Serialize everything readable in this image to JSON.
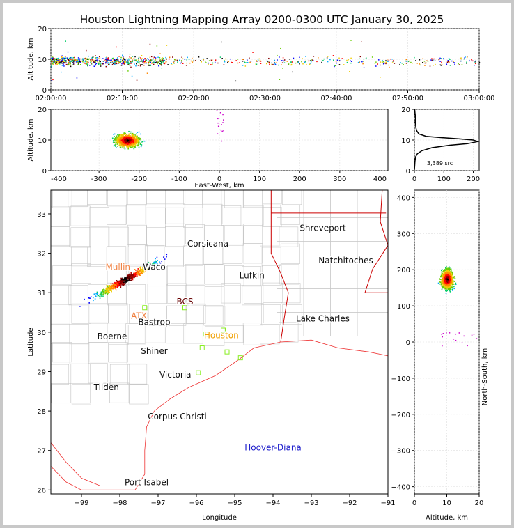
{
  "title": "Houston Lightning Mapping Array 0200-0300 UTC January 30, 2025",
  "colors": {
    "border": "#cc0000",
    "county": "#c8c8c8",
    "coast": "#ee3333",
    "station": "#88ee22",
    "frame": "#000000"
  },
  "chart_data": [
    {
      "id": "time-altitude",
      "type": "scatter",
      "xlabel": "",
      "ylabel": "Altitude, km",
      "xlim": [
        "02:00:00",
        "03:00:00"
      ],
      "x_ticks": [
        "02:00:00",
        "02:10:00",
        "02:20:00",
        "02:30:00",
        "02:40:00",
        "02:50:00",
        "03:00:00"
      ],
      "ylim": [
        0,
        20
      ],
      "y_ticks": [
        0,
        10,
        20
      ],
      "source_altitude_km": 9.5
    },
    {
      "id": "east-west-altitude",
      "type": "scatter",
      "xlabel": "East-West, km",
      "ylabel": "Altitude, km",
      "xlim": [
        -420,
        420
      ],
      "x_ticks": [
        -400,
        -300,
        -200,
        -100,
        0,
        100,
        200,
        300,
        400
      ],
      "ylim": [
        0,
        20
      ],
      "y_ticks": [
        0,
        10,
        20
      ],
      "cluster_center": [
        -230,
        10
      ]
    },
    {
      "id": "altitude-histogram",
      "type": "line",
      "xlim": [
        0,
        220
      ],
      "x_ticks": [
        0,
        100,
        200
      ],
      "ylim": [
        0,
        20
      ],
      "y_ticks": [
        0,
        10,
        20
      ],
      "annotation": "3,389 src",
      "profile": [
        [
          0,
          0.3
        ],
        [
          1,
          1.5
        ],
        [
          2,
          3
        ],
        [
          4,
          4.5
        ],
        [
          10,
          5.5
        ],
        [
          25,
          6.5
        ],
        [
          60,
          7.5
        ],
        [
          120,
          8.3
        ],
        [
          180,
          8.8
        ],
        [
          215,
          9.5
        ],
        [
          200,
          10.0
        ],
        [
          150,
          10.4
        ],
        [
          90,
          10.8
        ],
        [
          40,
          11.2
        ],
        [
          15,
          12
        ],
        [
          8,
          13
        ],
        [
          5,
          14
        ],
        [
          4,
          15
        ],
        [
          3,
          16
        ],
        [
          4,
          17
        ],
        [
          3,
          18
        ],
        [
          2,
          19
        ],
        [
          1,
          20
        ]
      ]
    },
    {
      "id": "plan-view",
      "type": "scatter",
      "xlabel": "Longitude",
      "ylabel": "Latitude",
      "xlim": [
        -99.8,
        -91
      ],
      "x_ticks": [
        -99,
        -98,
        -97,
        -96,
        -95,
        -94,
        -93,
        -92,
        -91
      ],
      "ylim": [
        25.9,
        33.6
      ],
      "y_ticks": [
        26,
        27,
        28,
        29,
        30,
        31,
        32,
        33
      ],
      "cities": [
        {
          "name": "Shreveport",
          "lon": -92.7,
          "lat": 32.57,
          "color": "#111111"
        },
        {
          "name": "Corsicana",
          "lon": -95.7,
          "lat": 32.17,
          "color": "#111111"
        },
        {
          "name": "Natchitoches",
          "lon": -92.1,
          "lat": 31.75,
          "color": "#111111"
        },
        {
          "name": "Mullin",
          "lon": -98.05,
          "lat": 31.58,
          "color": "#f08040"
        },
        {
          "name": "Waco",
          "lon": -97.1,
          "lat": 31.58,
          "color": "#111111"
        },
        {
          "name": "Lufkin",
          "lon": -94.55,
          "lat": 31.37,
          "color": "#111111"
        },
        {
          "name": "BCS",
          "lon": -96.3,
          "lat": 30.7,
          "color": "#660000"
        },
        {
          "name": "ATX",
          "lon": -97.5,
          "lat": 30.34,
          "color": "#f08040"
        },
        {
          "name": "Bastrop",
          "lon": -97.1,
          "lat": 30.18,
          "color": "#111111"
        },
        {
          "name": "Lake Charles",
          "lon": -92.7,
          "lat": 30.27,
          "color": "#111111"
        },
        {
          "name": "Houston",
          "lon": -95.35,
          "lat": 29.85,
          "color": "#f0a000"
        },
        {
          "name": "Boerne",
          "lon": -98.2,
          "lat": 29.82,
          "color": "#111111"
        },
        {
          "name": "Shiner",
          "lon": -97.1,
          "lat": 29.45,
          "color": "#111111"
        },
        {
          "name": "Victoria",
          "lon": -96.55,
          "lat": 28.85,
          "color": "#111111"
        },
        {
          "name": "Tilden",
          "lon": -98.35,
          "lat": 28.53,
          "color": "#111111"
        },
        {
          "name": "Corpus Christi",
          "lon": -96.5,
          "lat": 27.79,
          "color": "#111111"
        },
        {
          "name": "Hoover-Diana",
          "lon": -94.0,
          "lat": 27.0,
          "color": "#2020cc"
        },
        {
          "name": "Port Isabel",
          "lon": -97.3,
          "lat": 26.12,
          "color": "#111111"
        }
      ],
      "stations": [
        [
          -97.35,
          30.62
        ],
        [
          -96.3,
          30.62
        ],
        [
          -95.3,
          30.05
        ],
        [
          -95.75,
          29.95
        ],
        [
          -95.85,
          29.6
        ],
        [
          -95.2,
          29.5
        ],
        [
          -94.85,
          29.35
        ],
        [
          -95.95,
          28.97
        ]
      ],
      "cluster_center": [
        -97.85,
        31.35
      ]
    },
    {
      "id": "north-south-altitude",
      "type": "scatter",
      "xlabel": "Altitude, km",
      "ylabel": "North-South, km",
      "xlim": [
        0,
        20
      ],
      "x_ticks": [
        0,
        10,
        20
      ],
      "ylim": [
        -420,
        420
      ],
      "y_ticks": [
        -400,
        -300,
        -200,
        -100,
        0,
        100,
        200,
        300,
        400
      ],
      "cluster_center": [
        10,
        175
      ]
    }
  ]
}
